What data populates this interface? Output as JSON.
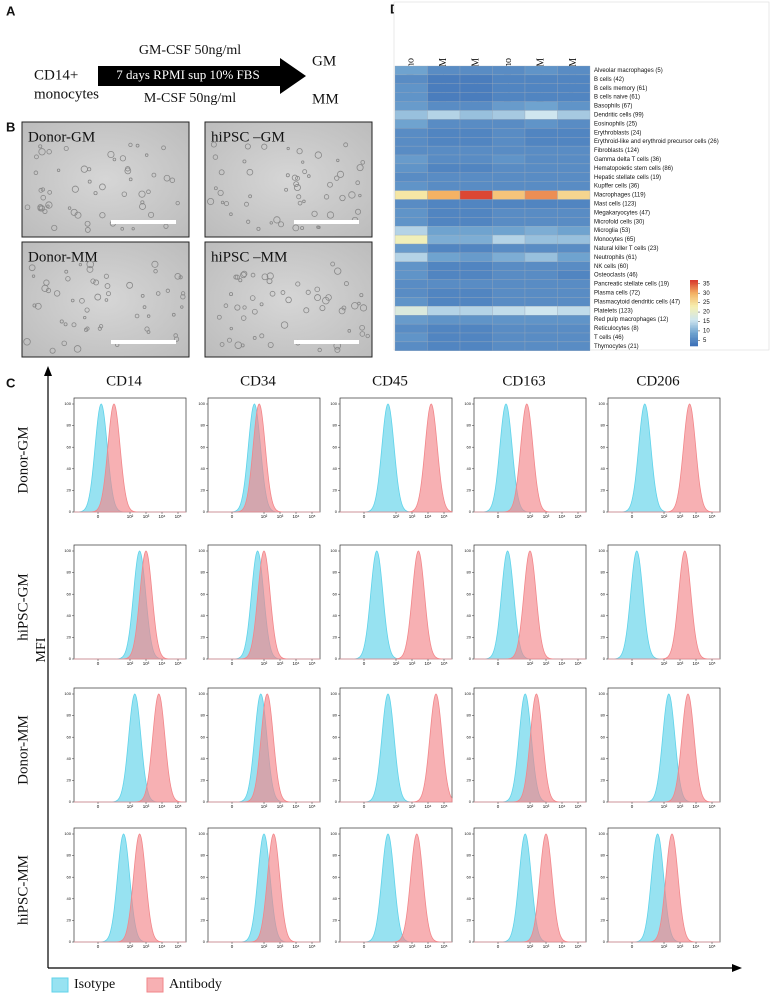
{
  "panel_labels": {
    "a": "A",
    "b": "B",
    "c": "C",
    "d": "D"
  },
  "panel_a": {
    "source_line1": "CD14+",
    "source_line2": "monocytes",
    "above_arrow": "GM-CSF 50ng/ml",
    "in_arrow": "7 days RPMI sup 10% FBS",
    "below_arrow": "M-CSF 50ng/ml",
    "out_top": "GM",
    "out_bottom": "MM"
  },
  "panel_b": {
    "images": [
      "Donor-GM",
      "hiPSC –GM",
      "Donor-MM",
      "hiPSC –MM"
    ]
  },
  "panel_c": {
    "markers": [
      "CD14",
      "CD34",
      "CD45",
      "CD163",
      "CD206"
    ],
    "axis_label": "MFI",
    "ylim": [
      0,
      100
    ],
    "yticks": [
      0,
      20,
      40,
      60,
      80,
      100
    ],
    "xlim": [
      -1.5,
      5.5
    ],
    "xticks": [
      {
        "value": 0,
        "label": "0"
      },
      {
        "value": 2,
        "label": "10²"
      },
      {
        "value": 3,
        "label": "10³"
      },
      {
        "value": 4,
        "label": "10⁴"
      },
      {
        "value": 5,
        "label": "10⁵"
      }
    ],
    "rows": [
      {
        "label": "Donor-GM",
        "isotype": [
          0.2,
          1.4,
          1.5,
          0.5,
          0.8
        ],
        "antibody": [
          1.0,
          1.7,
          4.2,
          1.8,
          3.6
        ]
      },
      {
        "label": "hiPSC-GM",
        "isotype": [
          2.6,
          1.6,
          0.8,
          0.6,
          0.3
        ],
        "antibody": [
          3.0,
          2.0,
          3.4,
          2.0,
          3.3
        ]
      },
      {
        "label": "Donor-MM",
        "isotype": [
          2.3,
          1.8,
          1.5,
          1.7,
          2.3
        ],
        "antibody": [
          3.8,
          2.2,
          4.5,
          2.4,
          3.5
        ]
      },
      {
        "label": "hiPSC-MM",
        "isotype": [
          1.6,
          2.0,
          1.5,
          1.7,
          1.6
        ],
        "antibody": [
          2.6,
          2.6,
          3.3,
          3.0,
          2.5
        ]
      }
    ],
    "legend": [
      {
        "name": "Isotype",
        "color": "#5fd3ea"
      },
      {
        "name": "Antibody",
        "color": "#f2868a"
      }
    ]
  },
  "panel_d": {
    "columns": [
      "Donor-Mono",
      "Donor-GM",
      "Donor-MM",
      "hiPSC-Mono",
      "hiPSC-GM",
      "hiPSC-MM"
    ],
    "rows": [
      "Alveolar macrophages (5)",
      "B cells (42)",
      "B cells memory (61)",
      "B cells naive (61)",
      "Basophils (67)",
      "Dendritic cells (99)",
      "Eosinophils (25)",
      "Erythroblasts (24)",
      "Erythroid-like and erythroid precursor cells (26)",
      "Fibroblasts (124)",
      "Gamma delta T cells (36)",
      "Hematopoietic stem cells (86)",
      "Hepatic stellate cells (19)",
      "Kupffer cells (36)",
      "Macrophages (119)",
      "Mast cells (123)",
      "Megakaryocytes (47)",
      "Microfold cells (30)",
      "Microglia (53)",
      "Monocytes (65)",
      "Natural killer T cells (23)",
      "Neutrophils (61)",
      "NK cells (60)",
      "Osteoclasts (46)",
      "Pancreatic stellate cells (19)",
      "Plasma cells (72)",
      "Plasmacytoid dendritic cells (47)",
      "Platelets (123)",
      "Red pulp macrophages (12)",
      "Reticulocytes (8)",
      "T cells (46)",
      "Thymocytes (21)"
    ],
    "values": [
      [
        9,
        6,
        6,
        6,
        7,
        6
      ],
      [
        6,
        4,
        4,
        5,
        5,
        5
      ],
      [
        7,
        4,
        4,
        5,
        5,
        5
      ],
      [
        7,
        4,
        4,
        5,
        5,
        5
      ],
      [
        8,
        6,
        6,
        8,
        9,
        7
      ],
      [
        12,
        14,
        12,
        13,
        16,
        13
      ],
      [
        9,
        6,
        6,
        6,
        7,
        6
      ],
      [
        6,
        5,
        5,
        6,
        5,
        5
      ],
      [
        6,
        5,
        5,
        6,
        5,
        5
      ],
      [
        6,
        6,
        6,
        6,
        6,
        6
      ],
      [
        8,
        6,
        6,
        7,
        6,
        6
      ],
      [
        7,
        5,
        5,
        6,
        6,
        6
      ],
      [
        6,
        6,
        6,
        6,
        6,
        6
      ],
      [
        7,
        6,
        6,
        6,
        6,
        6
      ],
      [
        24,
        30,
        36,
        28,
        32,
        26
      ],
      [
        6,
        5,
        5,
        5,
        5,
        5
      ],
      [
        7,
        5,
        5,
        6,
        6,
        6
      ],
      [
        7,
        5,
        5,
        6,
        6,
        6
      ],
      [
        14,
        9,
        9,
        9,
        10,
        9
      ],
      [
        22,
        10,
        10,
        14,
        12,
        12
      ],
      [
        8,
        5,
        5,
        6,
        6,
        6
      ],
      [
        14,
        9,
        8,
        10,
        12,
        9
      ],
      [
        7,
        5,
        5,
        6,
        6,
        6
      ],
      [
        7,
        5,
        5,
        6,
        6,
        5
      ],
      [
        6,
        6,
        6,
        6,
        6,
        6
      ],
      [
        6,
        5,
        5,
        6,
        6,
        6
      ],
      [
        7,
        5,
        5,
        6,
        6,
        6
      ],
      [
        18,
        14,
        14,
        15,
        16,
        15
      ],
      [
        8,
        7,
        7,
        7,
        7,
        7
      ],
      [
        6,
        5,
        5,
        6,
        6,
        6
      ],
      [
        7,
        5,
        5,
        6,
        6,
        6
      ],
      [
        6,
        5,
        5,
        6,
        6,
        6
      ]
    ],
    "clim": [
      2,
      37
    ],
    "colorscale": [
      "#3b6eb6",
      "#6fa3cf",
      "#cfe6ef",
      "#f6f0b0",
      "#f4b264",
      "#d7352b"
    ],
    "colorbar_ticks": [
      5,
      10,
      15,
      20,
      25,
      30,
      35
    ]
  }
}
